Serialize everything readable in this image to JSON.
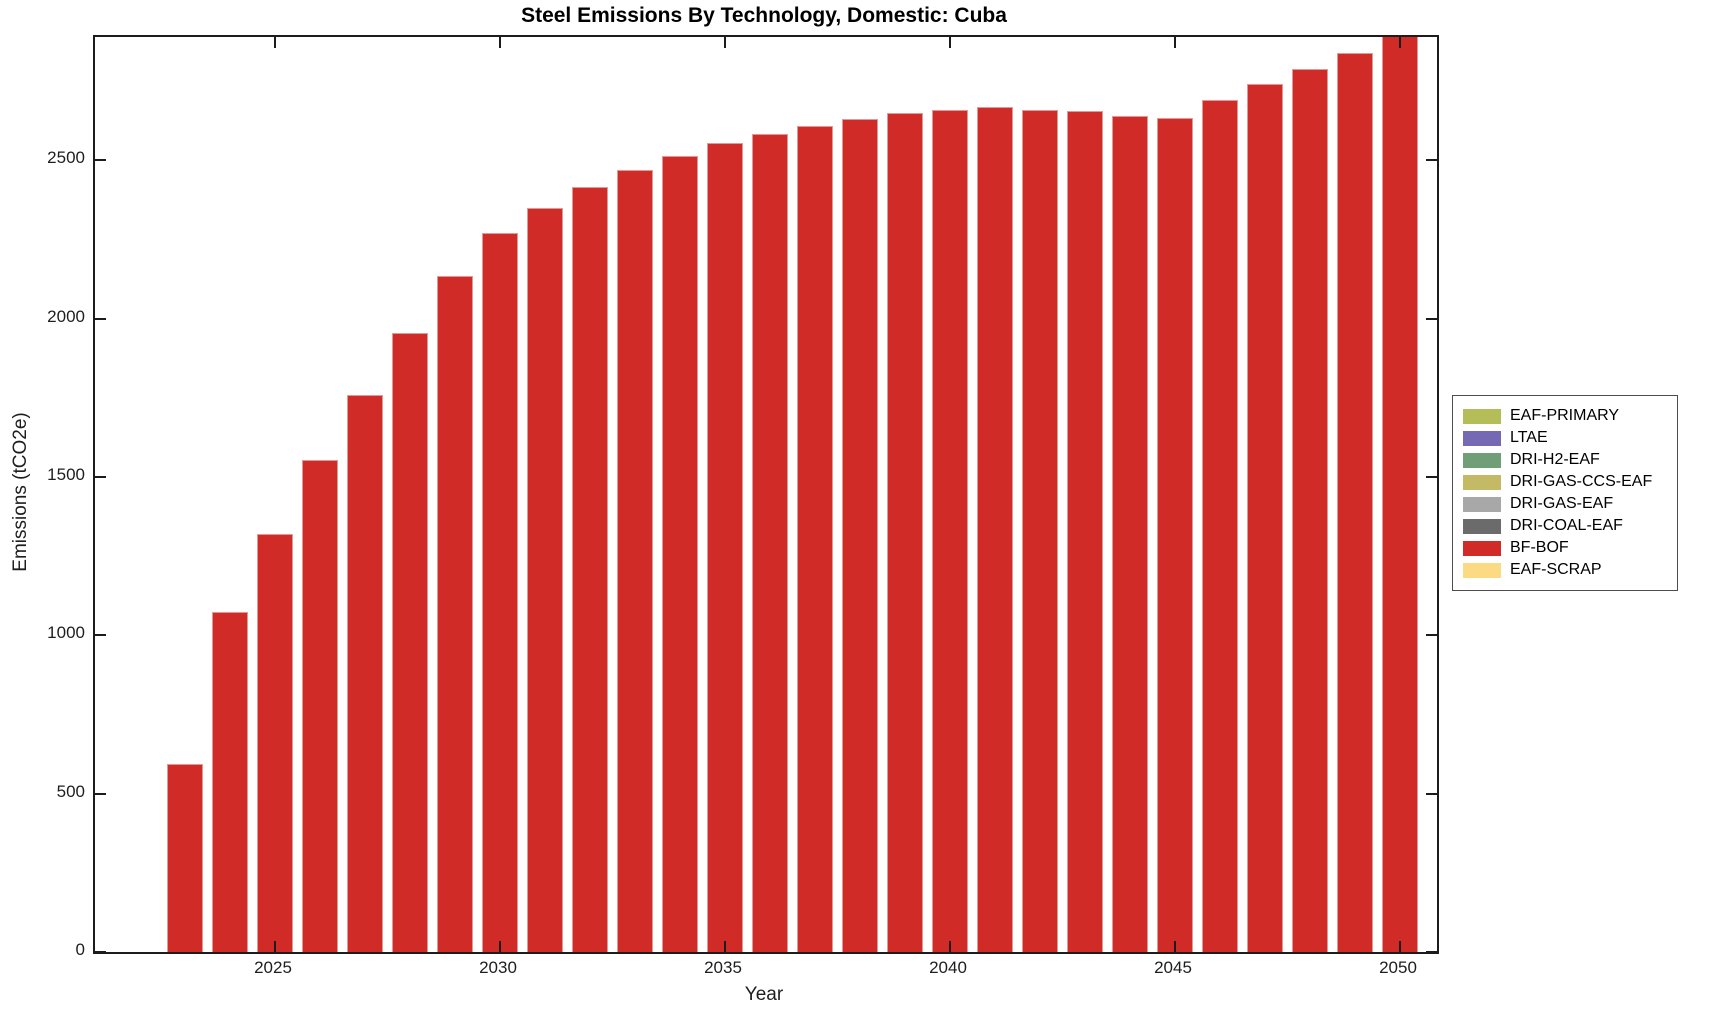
{
  "figure": {
    "title": "Steel Emissions By Technology, Domestic: Cuba",
    "background_color": "#ffffff",
    "axis_color": "#1c1c1c",
    "text_color": "#1e1e1e"
  },
  "chart_data": {
    "type": "bar",
    "stacked": true,
    "title": "Steel Emissions By Technology, Domestic: Cuba",
    "xlabel": "Year",
    "ylabel": "Emissions (tCO2e)",
    "x": [
      2023,
      2024,
      2025,
      2026,
      2027,
      2028,
      2029,
      2030,
      2031,
      2032,
      2033,
      2034,
      2035,
      2036,
      2037,
      2038,
      2039,
      2040,
      2041,
      2042,
      2043,
      2044,
      2045,
      2046,
      2047,
      2048,
      2049,
      2050
    ],
    "series": [
      {
        "name": "BF-BOF",
        "color": "#d02b27",
        "edge_color": "#e09a95",
        "values": [
          595,
          1075,
          1320,
          1555,
          1760,
          1955,
          2135,
          2270,
          2350,
          2415,
          2470,
          2515,
          2555,
          2585,
          2610,
          2630,
          2650,
          2660,
          2670,
          2660,
          2655,
          2640,
          2635,
          2690,
          2740,
          2790,
          2840,
          2950
        ]
      }
    ],
    "xtick_values": [
      2025,
      2030,
      2035,
      2040,
      2045,
      2050
    ],
    "xtick_labels": [
      "2025",
      "2030",
      "2035",
      "2040",
      "2045",
      "2050"
    ],
    "ytick_values": [
      0,
      500,
      1000,
      1500,
      2000,
      2500
    ],
    "ytick_labels": [
      "0",
      "500",
      "1000",
      "1500",
      "2000",
      "2500"
    ],
    "ylim": [
      0,
      2890
    ],
    "xlim_years": [
      2022.5,
      2050.8
    ],
    "grid": false,
    "box": true,
    "tick_direction": "in",
    "legend_position": "right-outside",
    "legend": [
      {
        "label": "EAF-PRIMARY",
        "color": "#b4bd57"
      },
      {
        "label": "LTAE",
        "color": "#7569b3"
      },
      {
        "label": "DRI-H2-EAF",
        "color": "#6f9e77"
      },
      {
        "label": "DRI-GAS-CCS-EAF",
        "color": "#c4ba66"
      },
      {
        "label": "DRI-GAS-EAF",
        "color": "#a8a8a8"
      },
      {
        "label": "DRI-COAL-EAF",
        "color": "#6b6b6b"
      },
      {
        "label": "BF-BOF",
        "color": "#d02b27"
      },
      {
        "label": "EAF-SCRAP",
        "color": "#fbda83"
      }
    ],
    "notes": "Only the BF-BOF series has visible bars; other legend technologies show no visible contribution. The 2050 bar is clipped at the top of the axes."
  }
}
